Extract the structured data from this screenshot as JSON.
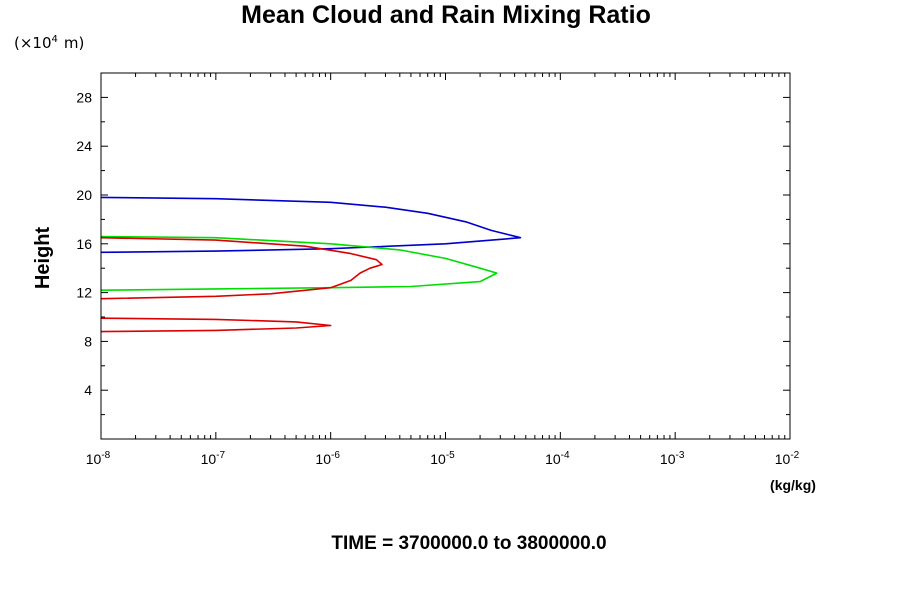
{
  "chart_data": {
    "type": "line",
    "title": "Mean Cloud and Rain Mixing Ratio",
    "y_scale_label": "(×10",
    "y_scale_exp": "4",
    "y_scale_unit": "m)",
    "ylabel": "Height",
    "xlabel_unit": "(kg/kg)",
    "footer": "TIME = 3700000.0 to 3800000.0",
    "x_scale": "log",
    "xlim": [
      1e-08,
      0.01
    ],
    "ylim": [
      0,
      30
    ],
    "y_ticks": [
      4,
      8,
      12,
      16,
      20,
      24,
      28
    ],
    "x_ticks": [
      {
        "base": "10",
        "exp": "-8"
      },
      {
        "base": "10",
        "exp": "-7"
      },
      {
        "base": "10",
        "exp": "-6"
      },
      {
        "base": "10",
        "exp": "-5"
      },
      {
        "base": "10",
        "exp": "-4"
      },
      {
        "base": "10",
        "exp": "-3"
      },
      {
        "base": "10",
        "exp": "-2"
      }
    ],
    "series": [
      {
        "color": "#0000cc",
        "points": [
          [
            1e-08,
            19.8
          ],
          [
            1e-07,
            19.7
          ],
          [
            1e-06,
            19.4
          ],
          [
            3e-06,
            19.0
          ],
          [
            7e-06,
            18.5
          ],
          [
            1.5e-05,
            17.8
          ],
          [
            2.5e-05,
            17.1
          ],
          [
            4.5e-05,
            16.5
          ],
          [
            1e-05,
            16.0
          ],
          [
            1e-06,
            15.6
          ],
          [
            1e-07,
            15.4
          ],
          [
            1e-08,
            15.3
          ]
        ]
      },
      {
        "color": "#00dd00",
        "points": [
          [
            1e-08,
            16.6
          ],
          [
            1e-07,
            16.5
          ],
          [
            1e-06,
            16.0
          ],
          [
            4e-06,
            15.5
          ],
          [
            1e-05,
            14.8
          ],
          [
            2e-05,
            14.0
          ],
          [
            2.8e-05,
            13.6
          ],
          [
            2e-05,
            12.9
          ],
          [
            5e-06,
            12.5
          ],
          [
            1e-06,
            12.4
          ],
          [
            1e-07,
            12.3
          ],
          [
            1e-08,
            12.2
          ]
        ]
      },
      {
        "color": "#dd0000",
        "points": [
          [
            1e-08,
            16.5
          ],
          [
            1e-07,
            16.3
          ],
          [
            6e-07,
            15.8
          ],
          [
            1.5e-06,
            15.2
          ],
          [
            2.5e-06,
            14.7
          ],
          [
            2.8e-06,
            14.3
          ],
          [
            2.2e-06,
            14.0
          ],
          [
            1.8e-06,
            13.6
          ],
          [
            1.5e-06,
            13.0
          ],
          [
            1e-06,
            12.4
          ],
          [
            3e-07,
            11.9
          ],
          [
            1e-07,
            11.7
          ],
          [
            1e-08,
            11.5
          ]
        ]
      },
      {
        "color": "#dd0000",
        "points": [
          [
            1e-08,
            9.9
          ],
          [
            1e-07,
            9.8
          ],
          [
            5e-07,
            9.6
          ],
          [
            1e-06,
            9.3
          ],
          [
            5e-07,
            9.1
          ],
          [
            1e-07,
            8.9
          ],
          [
            1e-08,
            8.8
          ]
        ]
      }
    ]
  }
}
